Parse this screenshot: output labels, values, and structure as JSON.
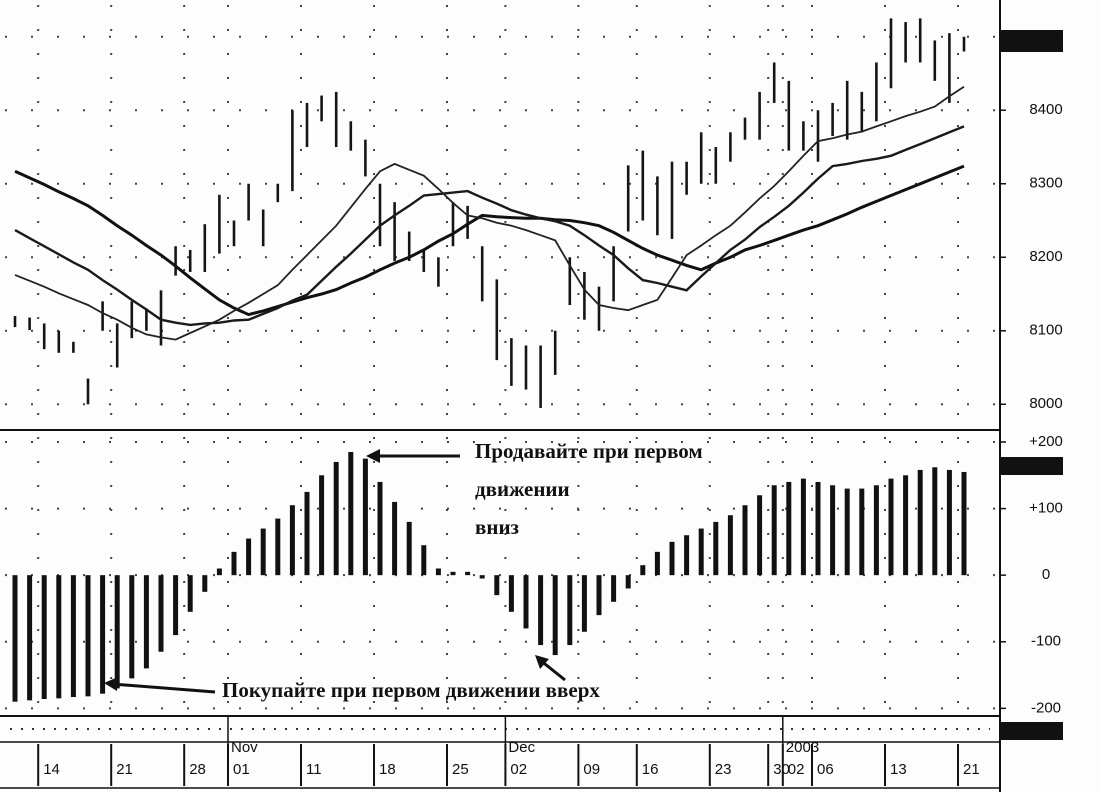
{
  "chart_data": [
    {
      "type": "range-bar",
      "categories": [
        null,
        null,
        "14",
        null,
        null,
        null,
        null,
        "21",
        null,
        null,
        null,
        null,
        "28",
        null,
        null,
        "01",
        null,
        null,
        null,
        null,
        "11",
        null,
        null,
        null,
        null,
        "18",
        null,
        null,
        null,
        null,
        "25",
        null,
        null,
        null,
        "02",
        null,
        null,
        null,
        null,
        "09",
        null,
        null,
        null,
        "16",
        null,
        null,
        null,
        null,
        "23",
        null,
        null,
        null,
        "30",
        "02",
        null,
        "06",
        null,
        null,
        null,
        null,
        "13",
        null,
        null,
        null,
        null,
        "21"
      ],
      "periods": [
        null,
        null,
        null,
        null,
        null,
        null,
        null,
        null,
        null,
        null,
        null,
        null,
        null,
        null,
        null,
        "Nov",
        null,
        null,
        null,
        null,
        null,
        null,
        null,
        null,
        null,
        null,
        null,
        null,
        null,
        null,
        null,
        null,
        null,
        null,
        "Dec",
        null,
        null,
        null,
        null,
        null,
        null,
        null,
        null,
        null,
        null,
        null,
        null,
        null,
        null,
        null,
        null,
        null,
        null,
        "2003",
        null,
        null,
        null,
        null,
        null,
        null,
        null,
        null,
        null,
        null,
        null,
        null
      ],
      "high": [
        8120,
        8118,
        8110,
        8100,
        8085,
        8035,
        8140,
        8110,
        8140,
        8130,
        8155,
        8215,
        8210,
        8245,
        8285,
        8250,
        8300,
        8265,
        8300,
        8400,
        8410,
        8420,
        8425,
        8385,
        8360,
        8300,
        8275,
        8235,
        8210,
        8200,
        8275,
        8270,
        8215,
        8170,
        8090,
        8080,
        8080,
        8100,
        8200,
        8180,
        8160,
        8215,
        8325,
        8345,
        8310,
        8330,
        8330,
        8370,
        8350,
        8370,
        8390,
        8425,
        8465,
        8440,
        8385,
        8400,
        8410,
        8440,
        8425,
        8465,
        8525,
        8520,
        8525,
        8495,
        8505,
        8500
      ],
      "low": [
        8105,
        8101,
        8075,
        8070,
        8070,
        8000,
        8100,
        8050,
        8090,
        8100,
        8080,
        8175,
        8180,
        8180,
        8205,
        8215,
        8250,
        8215,
        8275,
        8290,
        8350,
        8385,
        8350,
        8345,
        8310,
        8215,
        8195,
        8195,
        8180,
        8160,
        8215,
        8225,
        8140,
        8060,
        8025,
        8020,
        7995,
        8040,
        8135,
        8115,
        8100,
        8140,
        8235,
        8250,
        8230,
        8225,
        8285,
        8300,
        8300,
        8330,
        8360,
        8360,
        8410,
        8345,
        8345,
        8330,
        8365,
        8360,
        8370,
        8385,
        8430,
        8465,
        8465,
        8440,
        8410,
        8480
      ],
      "color": "#151515",
      "lines": [
        {
          "color": "#111111",
          "values": [
            8317,
            8308,
            8299,
            8289,
            8280,
            8270,
            8257,
            8243,
            8230,
            8216,
            8203,
            8188,
            8172,
            8157,
            8142,
            8131,
            8122,
            8127,
            8133,
            8139,
            8145,
            8150,
            8156,
            8165,
            8173,
            8183,
            8192,
            8200,
            8210,
            8222,
            8232,
            8245,
            8257,
            8255,
            8254,
            8253,
            8253,
            8251,
            8250,
            8247,
            8243,
            8234,
            8223,
            8212,
            8203,
            8196,
            8189,
            8183,
            8192,
            8200,
            8210,
            8216,
            8223,
            8230,
            8237,
            8243,
            8251,
            8259,
            8268,
            8276,
            8284,
            8292,
            8300,
            8308,
            8316,
            8324
          ]
        },
        {
          "color": "#1a1a1a",
          "values": [
            8237,
            8226,
            8215,
            8204,
            8193,
            8183,
            8169,
            8156,
            8142,
            8129,
            8115,
            8111,
            8108,
            8110,
            8111,
            8114,
            8115,
            8123,
            8131,
            8141,
            8149,
            8168,
            8187,
            8205,
            8224,
            8243,
            8257,
            8270,
            8284,
            8286,
            8288,
            8290,
            8281,
            8273,
            8264,
            8258,
            8253,
            8249,
            8243,
            8230,
            8216,
            8203,
            8185,
            8169,
            8165,
            8160,
            8155,
            8174,
            8192,
            8210,
            8224,
            8241,
            8255,
            8270,
            8288,
            8307,
            8324,
            8327,
            8331,
            8334,
            8338,
            8346,
            8354,
            8362,
            8370,
            8378
          ]
        },
        {
          "color": "#222222",
          "values": [
            8176,
            8168,
            8160,
            8151,
            8143,
            8135,
            8124,
            8115,
            8104,
            8095,
            8091,
            8088,
            8097,
            8106,
            8115,
            8127,
            8138,
            8150,
            8162,
            8183,
            8203,
            8223,
            8243,
            8268,
            8293,
            8317,
            8327,
            8319,
            8311,
            8293,
            8274,
            8257,
            8253,
            8247,
            8243,
            8237,
            8230,
            8223,
            8189,
            8156,
            8135,
            8131,
            8128,
            8135,
            8142,
            8172,
            8203,
            8216,
            8230,
            8243,
            8261,
            8280,
            8297,
            8317,
            8338,
            8358,
            8362,
            8367,
            8371,
            8378,
            8385,
            8392,
            8398,
            8405,
            8419,
            8432
          ]
        }
      ],
      "ylim": [
        7965,
        8550
      ],
      "yticks": [
        8000,
        8100,
        8200,
        8300,
        8400,
        8500
      ],
      "grid": true
    },
    {
      "type": "bar",
      "values": [
        -190,
        -188,
        -186,
        -185,
        -183,
        -182,
        -178,
        -170,
        -155,
        -140,
        -115,
        -90,
        -55,
        -25,
        10,
        35,
        55,
        70,
        85,
        105,
        125,
        150,
        170,
        185,
        175,
        140,
        110,
        80,
        45,
        10,
        5,
        5,
        -5,
        -30,
        -55,
        -80,
        -105,
        -120,
        -105,
        -85,
        -60,
        -40,
        -20,
        15,
        35,
        50,
        60,
        70,
        80,
        90,
        105,
        120,
        135,
        140,
        145,
        140,
        135,
        130,
        130,
        135,
        145,
        150,
        158,
        162,
        158,
        155
      ],
      "color": "#111111",
      "ylim": [
        -210,
        215
      ],
      "yticks": [
        {
          "value": 200,
          "label": "+200"
        },
        {
          "value": 100,
          "label": "+100"
        },
        0,
        -100,
        -200
      ],
      "grid": true,
      "annotations": [
        {
          "lines": [
            "Продавайте при первом",
            "движении",
            "вниз"
          ]
        },
        {
          "lines": [
            "Покупайте при первом движении вверх"
          ]
        }
      ]
    }
  ]
}
